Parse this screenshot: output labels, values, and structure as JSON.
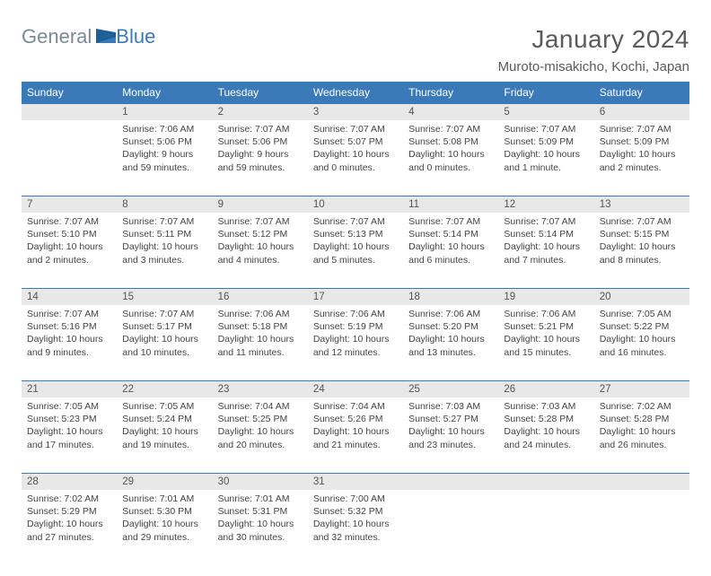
{
  "logo": {
    "text_left": "General",
    "text_right": "Blue"
  },
  "title": "January 2024",
  "location": "Muroto-misakicho, Kochi, Japan",
  "colors": {
    "header_bg": "#3a7ab8",
    "header_text": "#ffffff",
    "daynum_bg": "#e8e8e8",
    "rule": "#3a7ab8",
    "body_text": "#444444",
    "logo_gray": "#7a8a94",
    "logo_blue": "#3a7ab8"
  },
  "weekdays": [
    "Sunday",
    "Monday",
    "Tuesday",
    "Wednesday",
    "Thursday",
    "Friday",
    "Saturday"
  ],
  "weeks": [
    [
      null,
      {
        "n": "1",
        "sr": "Sunrise: 7:06 AM",
        "ss": "Sunset: 5:06 PM",
        "d1": "Daylight: 9 hours",
        "d2": "and 59 minutes."
      },
      {
        "n": "2",
        "sr": "Sunrise: 7:07 AM",
        "ss": "Sunset: 5:06 PM",
        "d1": "Daylight: 9 hours",
        "d2": "and 59 minutes."
      },
      {
        "n": "3",
        "sr": "Sunrise: 7:07 AM",
        "ss": "Sunset: 5:07 PM",
        "d1": "Daylight: 10 hours",
        "d2": "and 0 minutes."
      },
      {
        "n": "4",
        "sr": "Sunrise: 7:07 AM",
        "ss": "Sunset: 5:08 PM",
        "d1": "Daylight: 10 hours",
        "d2": "and 0 minutes."
      },
      {
        "n": "5",
        "sr": "Sunrise: 7:07 AM",
        "ss": "Sunset: 5:09 PM",
        "d1": "Daylight: 10 hours",
        "d2": "and 1 minute."
      },
      {
        "n": "6",
        "sr": "Sunrise: 7:07 AM",
        "ss": "Sunset: 5:09 PM",
        "d1": "Daylight: 10 hours",
        "d2": "and 2 minutes."
      }
    ],
    [
      {
        "n": "7",
        "sr": "Sunrise: 7:07 AM",
        "ss": "Sunset: 5:10 PM",
        "d1": "Daylight: 10 hours",
        "d2": "and 2 minutes."
      },
      {
        "n": "8",
        "sr": "Sunrise: 7:07 AM",
        "ss": "Sunset: 5:11 PM",
        "d1": "Daylight: 10 hours",
        "d2": "and 3 minutes."
      },
      {
        "n": "9",
        "sr": "Sunrise: 7:07 AM",
        "ss": "Sunset: 5:12 PM",
        "d1": "Daylight: 10 hours",
        "d2": "and 4 minutes."
      },
      {
        "n": "10",
        "sr": "Sunrise: 7:07 AM",
        "ss": "Sunset: 5:13 PM",
        "d1": "Daylight: 10 hours",
        "d2": "and 5 minutes."
      },
      {
        "n": "11",
        "sr": "Sunrise: 7:07 AM",
        "ss": "Sunset: 5:14 PM",
        "d1": "Daylight: 10 hours",
        "d2": "and 6 minutes."
      },
      {
        "n": "12",
        "sr": "Sunrise: 7:07 AM",
        "ss": "Sunset: 5:14 PM",
        "d1": "Daylight: 10 hours",
        "d2": "and 7 minutes."
      },
      {
        "n": "13",
        "sr": "Sunrise: 7:07 AM",
        "ss": "Sunset: 5:15 PM",
        "d1": "Daylight: 10 hours",
        "d2": "and 8 minutes."
      }
    ],
    [
      {
        "n": "14",
        "sr": "Sunrise: 7:07 AM",
        "ss": "Sunset: 5:16 PM",
        "d1": "Daylight: 10 hours",
        "d2": "and 9 minutes."
      },
      {
        "n": "15",
        "sr": "Sunrise: 7:07 AM",
        "ss": "Sunset: 5:17 PM",
        "d1": "Daylight: 10 hours",
        "d2": "and 10 minutes."
      },
      {
        "n": "16",
        "sr": "Sunrise: 7:06 AM",
        "ss": "Sunset: 5:18 PM",
        "d1": "Daylight: 10 hours",
        "d2": "and 11 minutes."
      },
      {
        "n": "17",
        "sr": "Sunrise: 7:06 AM",
        "ss": "Sunset: 5:19 PM",
        "d1": "Daylight: 10 hours",
        "d2": "and 12 minutes."
      },
      {
        "n": "18",
        "sr": "Sunrise: 7:06 AM",
        "ss": "Sunset: 5:20 PM",
        "d1": "Daylight: 10 hours",
        "d2": "and 13 minutes."
      },
      {
        "n": "19",
        "sr": "Sunrise: 7:06 AM",
        "ss": "Sunset: 5:21 PM",
        "d1": "Daylight: 10 hours",
        "d2": "and 15 minutes."
      },
      {
        "n": "20",
        "sr": "Sunrise: 7:05 AM",
        "ss": "Sunset: 5:22 PM",
        "d1": "Daylight: 10 hours",
        "d2": "and 16 minutes."
      }
    ],
    [
      {
        "n": "21",
        "sr": "Sunrise: 7:05 AM",
        "ss": "Sunset: 5:23 PM",
        "d1": "Daylight: 10 hours",
        "d2": "and 17 minutes."
      },
      {
        "n": "22",
        "sr": "Sunrise: 7:05 AM",
        "ss": "Sunset: 5:24 PM",
        "d1": "Daylight: 10 hours",
        "d2": "and 19 minutes."
      },
      {
        "n": "23",
        "sr": "Sunrise: 7:04 AM",
        "ss": "Sunset: 5:25 PM",
        "d1": "Daylight: 10 hours",
        "d2": "and 20 minutes."
      },
      {
        "n": "24",
        "sr": "Sunrise: 7:04 AM",
        "ss": "Sunset: 5:26 PM",
        "d1": "Daylight: 10 hours",
        "d2": "and 21 minutes."
      },
      {
        "n": "25",
        "sr": "Sunrise: 7:03 AM",
        "ss": "Sunset: 5:27 PM",
        "d1": "Daylight: 10 hours",
        "d2": "and 23 minutes."
      },
      {
        "n": "26",
        "sr": "Sunrise: 7:03 AM",
        "ss": "Sunset: 5:28 PM",
        "d1": "Daylight: 10 hours",
        "d2": "and 24 minutes."
      },
      {
        "n": "27",
        "sr": "Sunrise: 7:02 AM",
        "ss": "Sunset: 5:28 PM",
        "d1": "Daylight: 10 hours",
        "d2": "and 26 minutes."
      }
    ],
    [
      {
        "n": "28",
        "sr": "Sunrise: 7:02 AM",
        "ss": "Sunset: 5:29 PM",
        "d1": "Daylight: 10 hours",
        "d2": "and 27 minutes."
      },
      {
        "n": "29",
        "sr": "Sunrise: 7:01 AM",
        "ss": "Sunset: 5:30 PM",
        "d1": "Daylight: 10 hours",
        "d2": "and 29 minutes."
      },
      {
        "n": "30",
        "sr": "Sunrise: 7:01 AM",
        "ss": "Sunset: 5:31 PM",
        "d1": "Daylight: 10 hours",
        "d2": "and 30 minutes."
      },
      {
        "n": "31",
        "sr": "Sunrise: 7:00 AM",
        "ss": "Sunset: 5:32 PM",
        "d1": "Daylight: 10 hours",
        "d2": "and 32 minutes."
      },
      null,
      null,
      null
    ]
  ]
}
